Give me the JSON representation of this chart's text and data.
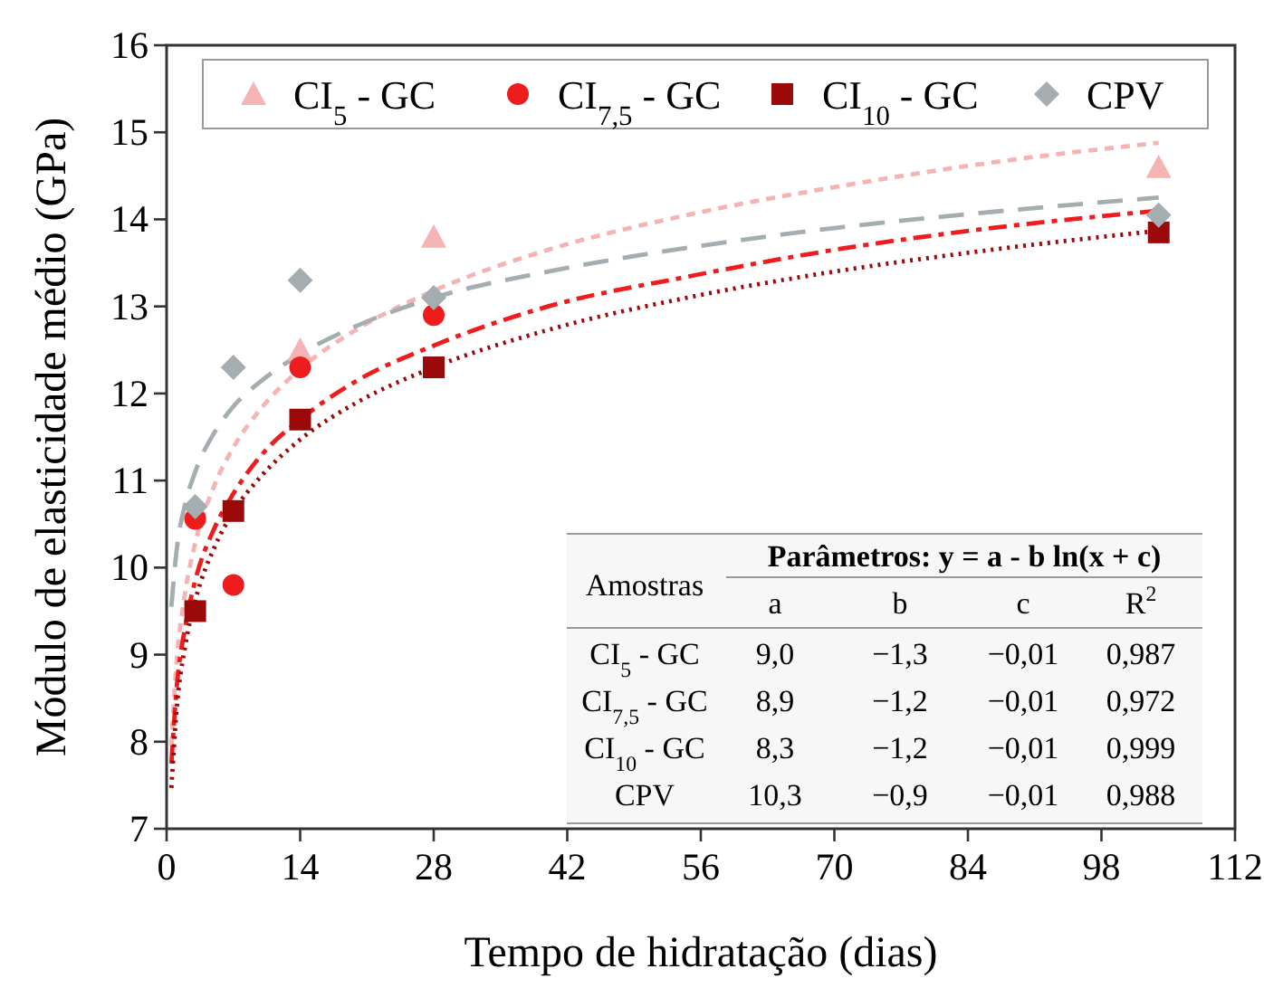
{
  "chart_data": {
    "type": "scatter",
    "xlabel": "Tempo de hidratação (dias)",
    "ylabel": "Módulo de elasticidade médio (GPa)",
    "xlim": [
      0,
      112
    ],
    "xticks": [
      0,
      14,
      28,
      42,
      56,
      70,
      84,
      98,
      112
    ],
    "ylim": [
      7,
      16
    ],
    "yticks": [
      7,
      8,
      9,
      10,
      11,
      12,
      13,
      14,
      15,
      16
    ],
    "grid": false,
    "legend": "top",
    "series": [
      {
        "name": "CI$_{5}$ - GC",
        "marker": "triangle",
        "color": "#f4b4b4",
        "x": [
          14,
          28,
          104
        ],
        "values": [
          12.5,
          13.8,
          14.6
        ]
      },
      {
        "name": "CI$_{7,5}$ - GC",
        "marker": "circle",
        "color": "#ee1c1c",
        "x": [
          3,
          7,
          14,
          28
        ],
        "values": [
          10.56,
          9.8,
          12.3,
          12.9
        ]
      },
      {
        "name": "CI$_{10}$ - GC",
        "marker": "square",
        "color": "#9b0a0a",
        "x": [
          3,
          7,
          14,
          28,
          104
        ],
        "values": [
          9.5,
          10.65,
          11.7,
          12.3,
          13.85
        ]
      },
      {
        "name": "CPV",
        "marker": "diamond",
        "color": "#a4adb0",
        "x": [
          3,
          7,
          14,
          28,
          104
        ],
        "values": [
          10.7,
          12.3,
          13.3,
          13.1,
          14.05
        ]
      },
      {
        "type": "line",
        "line_style": "dashed",
        "color": "#f4b4b4",
        "x": [
          0.5,
          1,
          2,
          3,
          5,
          7,
          10,
          14,
          20,
          28,
          40,
          55,
          70,
          85,
          104
        ],
        "values": [
          7.95,
          8.85,
          9.75,
          10.28,
          10.94,
          11.38,
          11.84,
          12.28,
          12.74,
          13.18,
          13.65,
          14.06,
          14.37,
          14.63,
          14.88
        ]
      },
      {
        "type": "line",
        "line_style": "dashdot",
        "color": "#ee1c1c",
        "x": [
          0.5,
          1,
          2,
          3,
          5,
          7,
          10,
          14,
          20,
          28,
          40,
          55,
          70,
          85,
          104
        ],
        "values": [
          7.75,
          8.55,
          9.35,
          9.85,
          10.45,
          10.85,
          11.3,
          11.7,
          12.15,
          12.55,
          13.0,
          13.35,
          13.65,
          13.88,
          14.1
        ]
      },
      {
        "type": "line",
        "line_style": "dotted",
        "color": "#9b0a0a",
        "x": [
          0.5,
          1,
          2,
          3,
          5,
          7,
          10,
          14,
          20,
          28,
          40,
          55,
          70,
          85,
          104
        ],
        "values": [
          7.47,
          8.3,
          9.13,
          9.62,
          10.23,
          10.64,
          11.06,
          11.47,
          11.9,
          12.3,
          12.73,
          13.11,
          13.4,
          13.63,
          13.87
        ]
      },
      {
        "type": "line",
        "line_style": "longdashed",
        "color": "#a4adb0",
        "x": [
          0.5,
          1,
          2,
          3,
          5,
          7,
          10,
          14,
          20,
          28,
          40,
          55,
          70,
          85,
          104
        ],
        "values": [
          9.55,
          10.15,
          10.75,
          11.1,
          11.55,
          11.85,
          12.15,
          12.45,
          12.78,
          13.1,
          13.4,
          13.68,
          13.9,
          14.07,
          14.25
        ]
      }
    ],
    "annotations": [
      "Amostras",
      "Parâmetros: y = a - b ln(x + c)",
      "a",
      "b",
      "c",
      "R$^{2}$",
      "CI$_{5}$ - GC",
      "9,0",
      "−1,3",
      "−0,01",
      "0,987",
      "CI$_{7,5}$ - GC",
      "8,9",
      "−1,2",
      "−0,01",
      "0,972",
      "CI$_{10}$ - GC",
      "8,3",
      "−1,2",
      "−0,01",
      "0,999",
      "CPV",
      "10,3",
      "−0,9",
      "−0,01",
      "0,988"
    ]
  }
}
